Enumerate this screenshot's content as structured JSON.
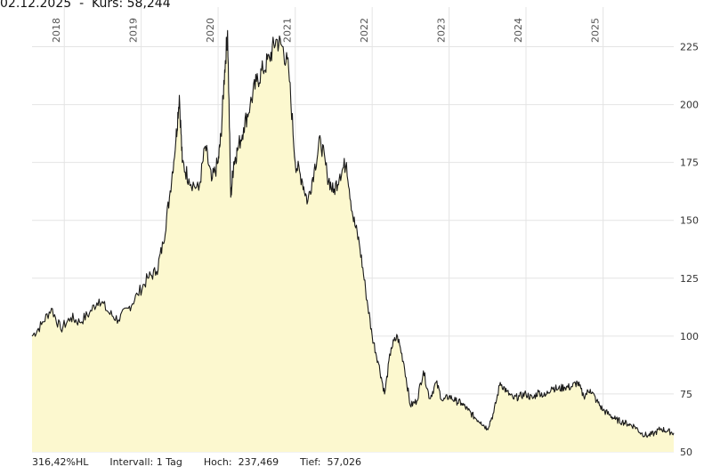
{
  "header": {
    "date": "02.12.2025",
    "separator": "-",
    "price_label": "Kurs:",
    "price_value": "58,244"
  },
  "footer": {
    "range_pct": "316,42%HL",
    "interval": "Intervall: 1 Tag",
    "high": "Hoch:  237,469",
    "low": "Tief:  57,026"
  },
  "colors": {
    "line": "#1a1a1a",
    "area_fill": "#fcf8cf",
    "grid": "#e4e4e4"
  },
  "chart_data": {
    "type": "area",
    "title": "",
    "xlabel": "",
    "ylabel": "",
    "ylim": [
      50,
      237.5
    ],
    "xlim": [
      "2017-08-01",
      "2025-12-02"
    ],
    "grid": true,
    "y_ticks": [
      50,
      75,
      100,
      125,
      150,
      175,
      200,
      225
    ],
    "x_ticks": [
      "2018",
      "2019",
      "2020",
      "2021",
      "2022",
      "2023",
      "2024",
      "2025"
    ],
    "series": [
      {
        "x": [
          "2017-08-01",
          "2017-09-15",
          "2017-11-01",
          "2017-12-15",
          "2018-02-01",
          "2018-03-15",
          "2018-05-01",
          "2018-06-15",
          "2018-08-01",
          "2018-09-15",
          "2018-11-01",
          "2018-12-15",
          "2019-02-01",
          "2019-03-15",
          "2019-04-15",
          "2019-05-15",
          "2019-06-15",
          "2019-07-01",
          "2019-07-15",
          "2019-08-15",
          "2019-10-01",
          "2019-11-01",
          "2019-12-01",
          "2020-01-01",
          "2020-01-15",
          "2020-02-01",
          "2020-02-15",
          "2020-03-01",
          "2020-03-15",
          "2020-04-01",
          "2020-05-01",
          "2020-06-01",
          "2020-07-01",
          "2020-08-01",
          "2020-09-01",
          "2020-10-01",
          "2020-11-01",
          "2020-12-01",
          "2021-01-01",
          "2021-02-01",
          "2021-03-01",
          "2021-04-01",
          "2021-05-01",
          "2021-06-01",
          "2021-07-01",
          "2021-08-01",
          "2021-09-01",
          "2021-10-01",
          "2021-11-01",
          "2021-12-01",
          "2022-01-01",
          "2022-02-01",
          "2022-03-01",
          "2022-04-01",
          "2022-05-01",
          "2022-06-01",
          "2022-07-01",
          "2022-08-01",
          "2022-09-01",
          "2022-10-01",
          "2022-11-01",
          "2022-12-01",
          "2023-01-01",
          "2023-02-01",
          "2023-03-01",
          "2023-04-01",
          "2023-05-01",
          "2023-06-01",
          "2023-07-01",
          "2023-08-01",
          "2023-09-01",
          "2023-10-01",
          "2023-11-01",
          "2023-12-01",
          "2024-01-01",
          "2024-02-01",
          "2024-03-01",
          "2024-04-01",
          "2024-05-01",
          "2024-06-01",
          "2024-07-01",
          "2024-08-01",
          "2024-09-01",
          "2024-10-01",
          "2024-11-01",
          "2024-12-01",
          "2025-01-01",
          "2025-02-01",
          "2025-03-01",
          "2025-04-01",
          "2025-05-01",
          "2025-06-01",
          "2025-07-01",
          "2025-08-01",
          "2025-09-01",
          "2025-10-01",
          "2025-11-01",
          "2025-12-02"
        ],
        "y": [
          100,
          105,
          112,
          103,
          108,
          106,
          110,
          116,
          110,
          107,
          112,
          118,
          125,
          128,
          140,
          160,
          185,
          204,
          175,
          168,
          163,
          182,
          167,
          175,
          187,
          215,
          232,
          160,
          175,
          180,
          190,
          200,
          210,
          215,
          220,
          228,
          225,
          215,
          175,
          168,
          158,
          172,
          185,
          170,
          162,
          170,
          175,
          152,
          140,
          120,
          100,
          88,
          75,
          95,
          100,
          88,
          70,
          72,
          85,
          73,
          80,
          72,
          74,
          72,
          71,
          68,
          65,
          63,
          60,
          67,
          80,
          76,
          73,
          74,
          75,
          73,
          76,
          74,
          78,
          77,
          78,
          78,
          80,
          74,
          77,
          72,
          68,
          66,
          64,
          63,
          62,
          61,
          58,
          57,
          58,
          60,
          59,
          58.2
        ]
      }
    ]
  }
}
